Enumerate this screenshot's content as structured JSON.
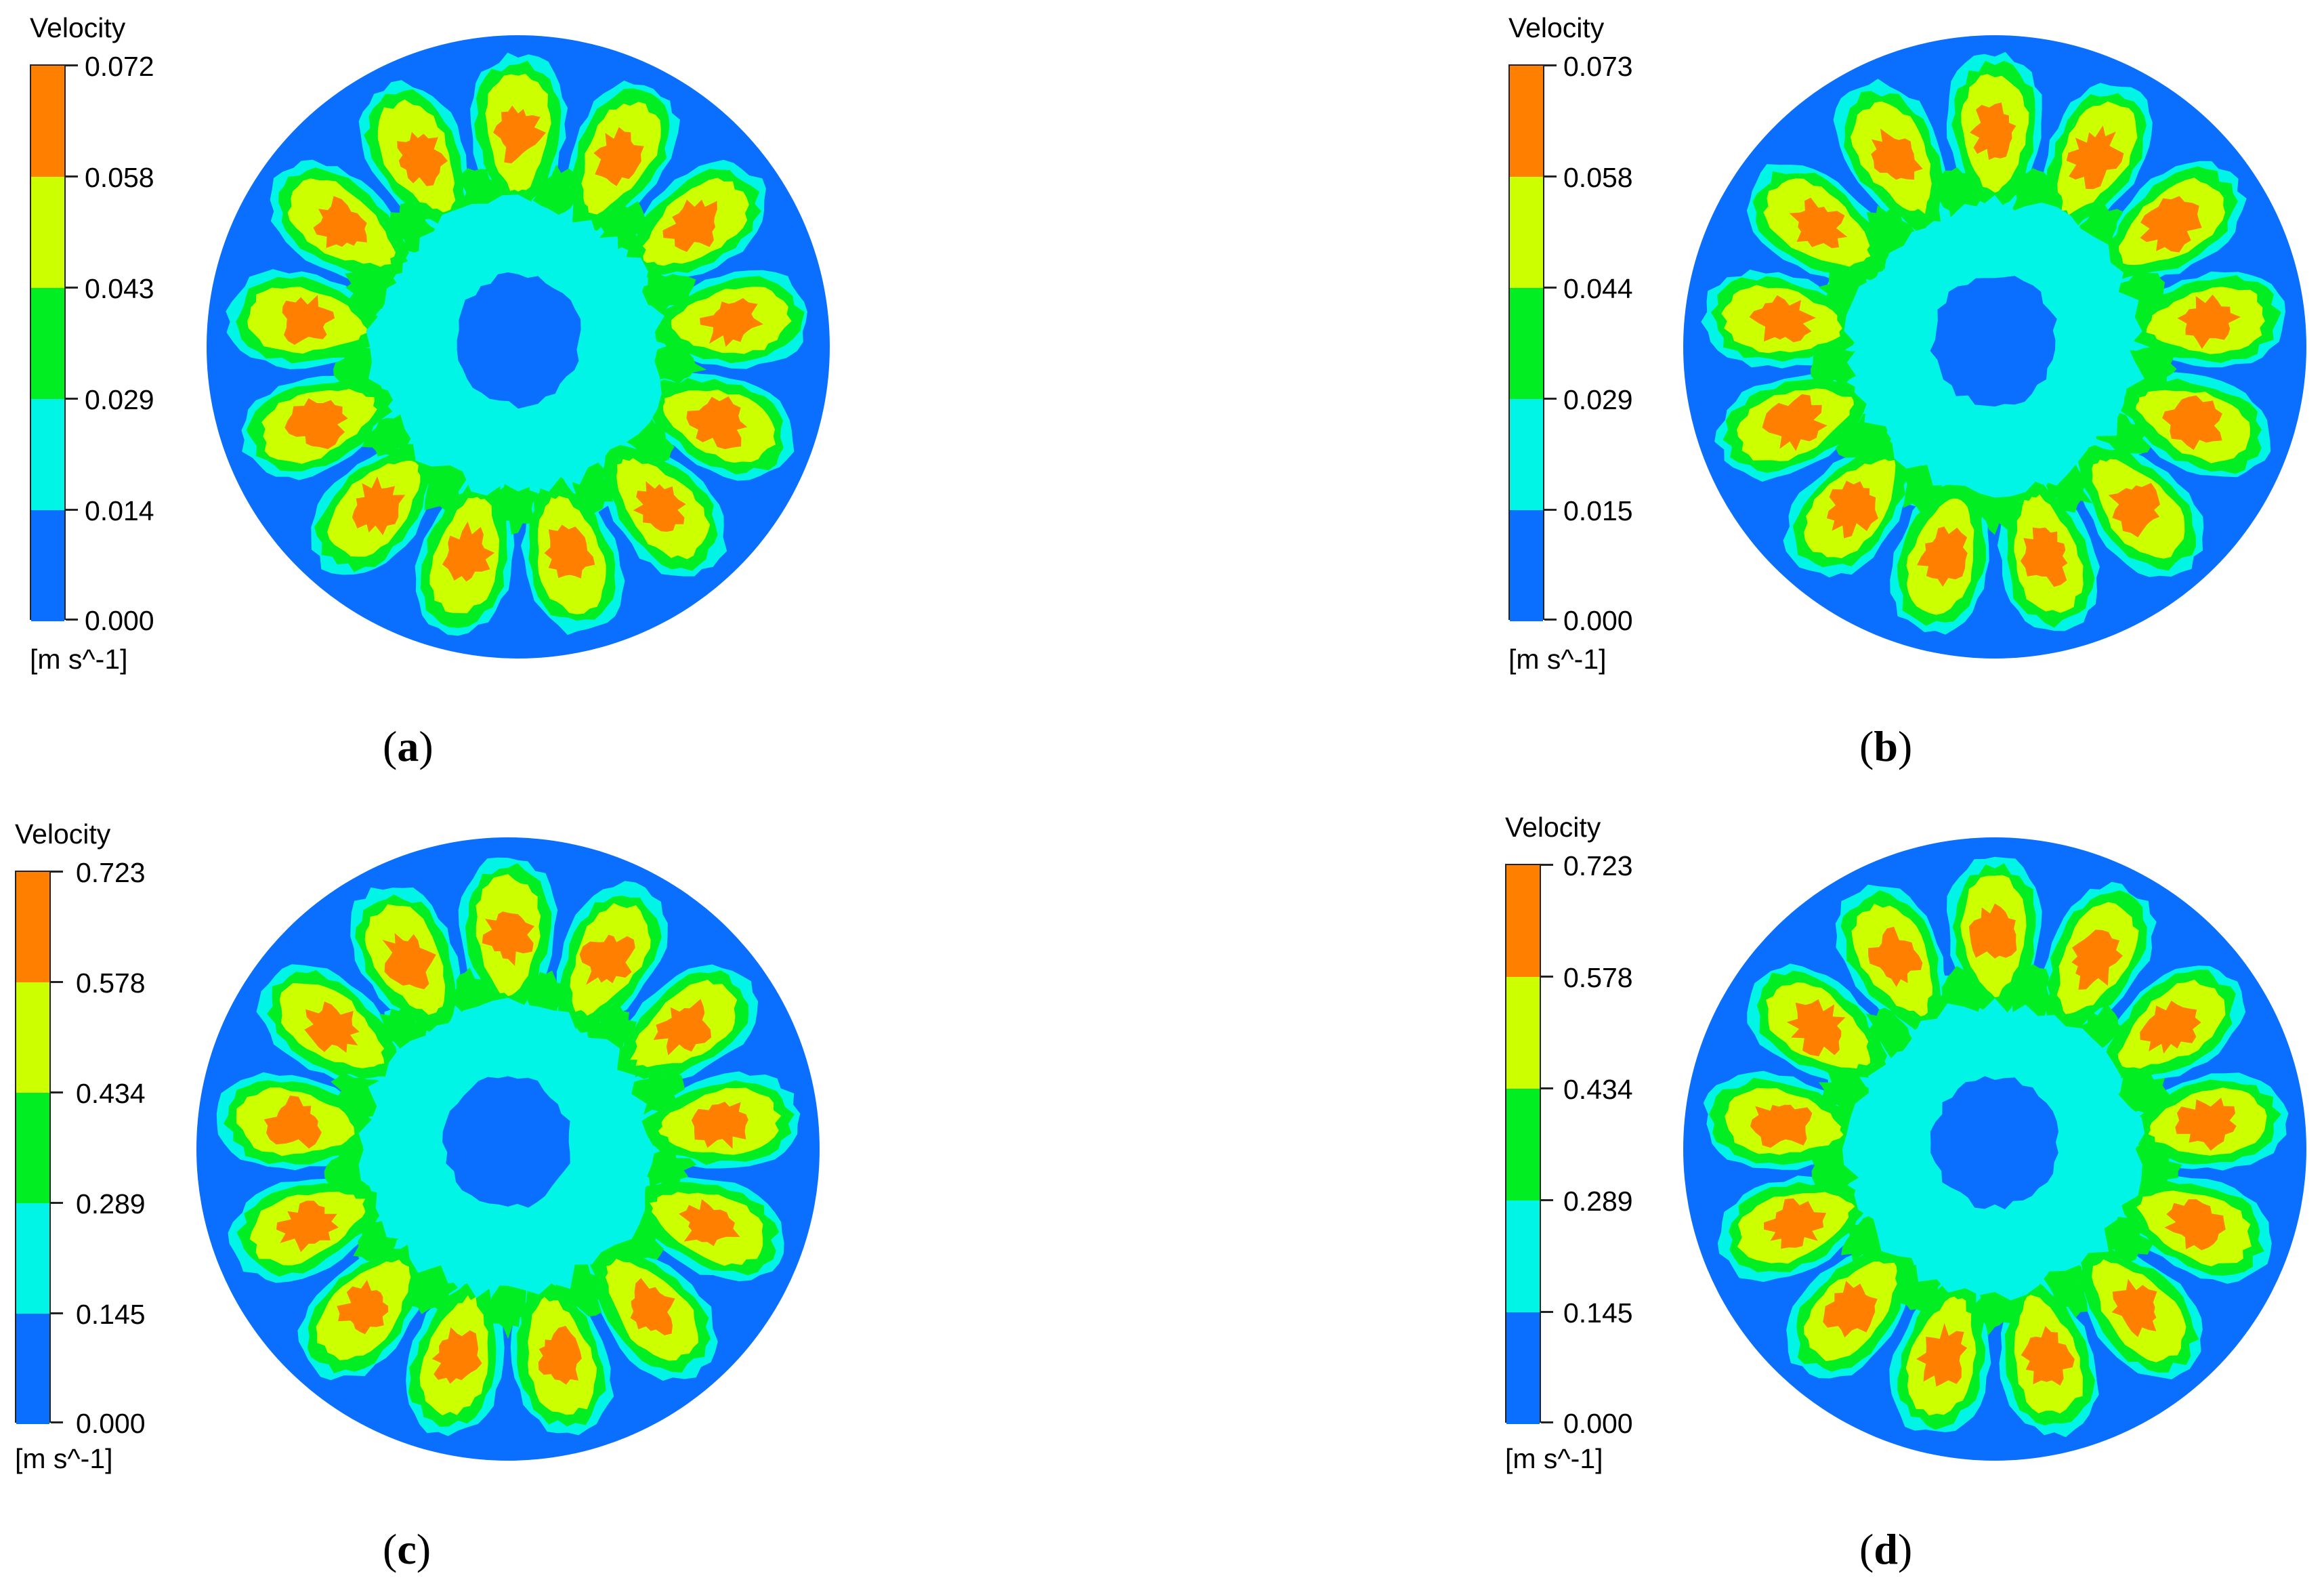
{
  "colors": {
    "level0": "#0a6fff",
    "level1": "#00f5e6",
    "level2": "#00ee22",
    "level3": "#ccff00",
    "level4": "#ff8000"
  },
  "panels": [
    {
      "id": "a",
      "legend": {
        "title": "Velocity",
        "unit": "[m s^-1]",
        "ticks": [
          "0.072",
          "0.058",
          "0.043",
          "0.029",
          "0.014",
          "0.000"
        ]
      },
      "caption": {
        "open": "(",
        "letter": "a",
        "close": ")"
      }
    },
    {
      "id": "b",
      "legend": {
        "title": "Velocity",
        "unit": "[m s^-1]",
        "ticks": [
          "0.073",
          "0.058",
          "0.044",
          "0.029",
          "0.015",
          "0.000"
        ]
      },
      "caption": {
        "open": "(",
        "letter": "b",
        "close": ")"
      }
    },
    {
      "id": "c",
      "legend": {
        "title": "Velocity",
        "unit": "[m s^-1]",
        "ticks": [
          "0.723",
          "0.578",
          "0.434",
          "0.289",
          "0.145",
          "0.000"
        ]
      },
      "caption": {
        "open": "(",
        "letter": "c",
        "close": ")"
      }
    },
    {
      "id": "d",
      "legend": {
        "title": "Velocity",
        "unit": "[m s^-1]",
        "ticks": [
          "0.723",
          "0.578",
          "0.434",
          "0.289",
          "0.145",
          "0.000"
        ]
      },
      "caption": {
        "open": "(",
        "letter": "d",
        "close": ")"
      }
    }
  ]
}
